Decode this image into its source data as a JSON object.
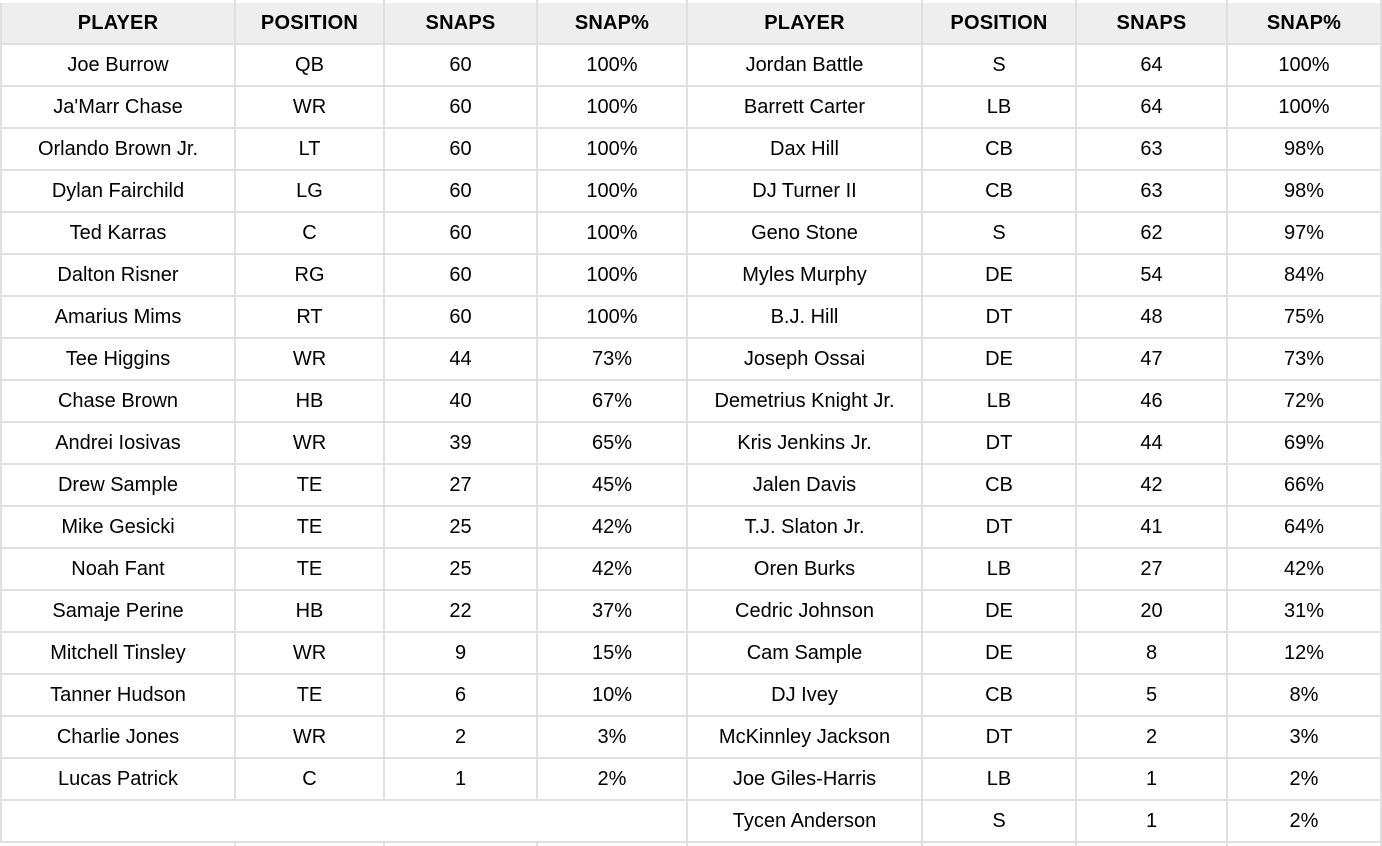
{
  "colors": {
    "header_bg": "#eeeeee",
    "grid_line": "#dfdfdf",
    "text": "#000000",
    "row_bg": "#ffffff"
  },
  "chart_data": {
    "type": "table",
    "layout": "two tables side by side sharing one grid; offense left, defense right; all cells center-aligned; gray header row; light gray gridlines",
    "tables": [
      {
        "name": "offense",
        "columns": [
          "PLAYER",
          "POSITION",
          "SNAPS",
          "SNAP%"
        ],
        "rows": [
          [
            "Joe Burrow",
            "QB",
            60,
            "100%"
          ],
          [
            "Ja'Marr Chase",
            "WR",
            60,
            "100%"
          ],
          [
            "Orlando Brown Jr.",
            "LT",
            60,
            "100%"
          ],
          [
            "Dylan Fairchild",
            "LG",
            60,
            "100%"
          ],
          [
            "Ted Karras",
            "C",
            60,
            "100%"
          ],
          [
            "Dalton Risner",
            "RG",
            60,
            "100%"
          ],
          [
            "Amarius Mims",
            "RT",
            60,
            "100%"
          ],
          [
            "Tee Higgins",
            "WR",
            44,
            "73%"
          ],
          [
            "Chase Brown",
            "HB",
            40,
            "67%"
          ],
          [
            "Andrei Iosivas",
            "WR",
            39,
            "65%"
          ],
          [
            "Drew Sample",
            "TE",
            27,
            "45%"
          ],
          [
            "Mike Gesicki",
            "TE",
            25,
            "42%"
          ],
          [
            "Noah Fant",
            "TE",
            25,
            "42%"
          ],
          [
            "Samaje Perine",
            "HB",
            22,
            "37%"
          ],
          [
            "Mitchell Tinsley",
            "WR",
            9,
            "15%"
          ],
          [
            "Tanner Hudson",
            "TE",
            6,
            "10%"
          ],
          [
            "Charlie Jones",
            "WR",
            2,
            "3%"
          ],
          [
            "Lucas Patrick",
            "C",
            1,
            "2%"
          ]
        ]
      },
      {
        "name": "defense",
        "columns": [
          "PLAYER",
          "POSITION",
          "SNAPS",
          "SNAP%"
        ],
        "rows": [
          [
            "Jordan Battle",
            "S",
            64,
            "100%"
          ],
          [
            "Barrett Carter",
            "LB",
            64,
            "100%"
          ],
          [
            "Dax Hill",
            "CB",
            63,
            "98%"
          ],
          [
            "DJ Turner II",
            "CB",
            63,
            "98%"
          ],
          [
            "Geno Stone",
            "S",
            62,
            "97%"
          ],
          [
            "Myles Murphy",
            "DE",
            54,
            "84%"
          ],
          [
            "B.J. Hill",
            "DT",
            48,
            "75%"
          ],
          [
            "Joseph Ossai",
            "DE",
            47,
            "73%"
          ],
          [
            "Demetrius Knight Jr.",
            "LB",
            46,
            "72%"
          ],
          [
            "Kris Jenkins Jr.",
            "DT",
            44,
            "69%"
          ],
          [
            "Jalen Davis",
            "CB",
            42,
            "66%"
          ],
          [
            "T.J. Slaton Jr.",
            "DT",
            41,
            "64%"
          ],
          [
            "Oren Burks",
            "LB",
            27,
            "42%"
          ],
          [
            "Cedric Johnson",
            "DE",
            20,
            "31%"
          ],
          [
            "Cam Sample",
            "DE",
            8,
            "12%"
          ],
          [
            "DJ Ivey",
            "CB",
            5,
            "8%"
          ],
          [
            "McKinnley Jackson",
            "DT",
            2,
            "3%"
          ],
          [
            "Joe Giles-Harris",
            "LB",
            1,
            "2%"
          ],
          [
            "Tycen Anderson",
            "S",
            1,
            "2%"
          ]
        ]
      }
    ]
  }
}
